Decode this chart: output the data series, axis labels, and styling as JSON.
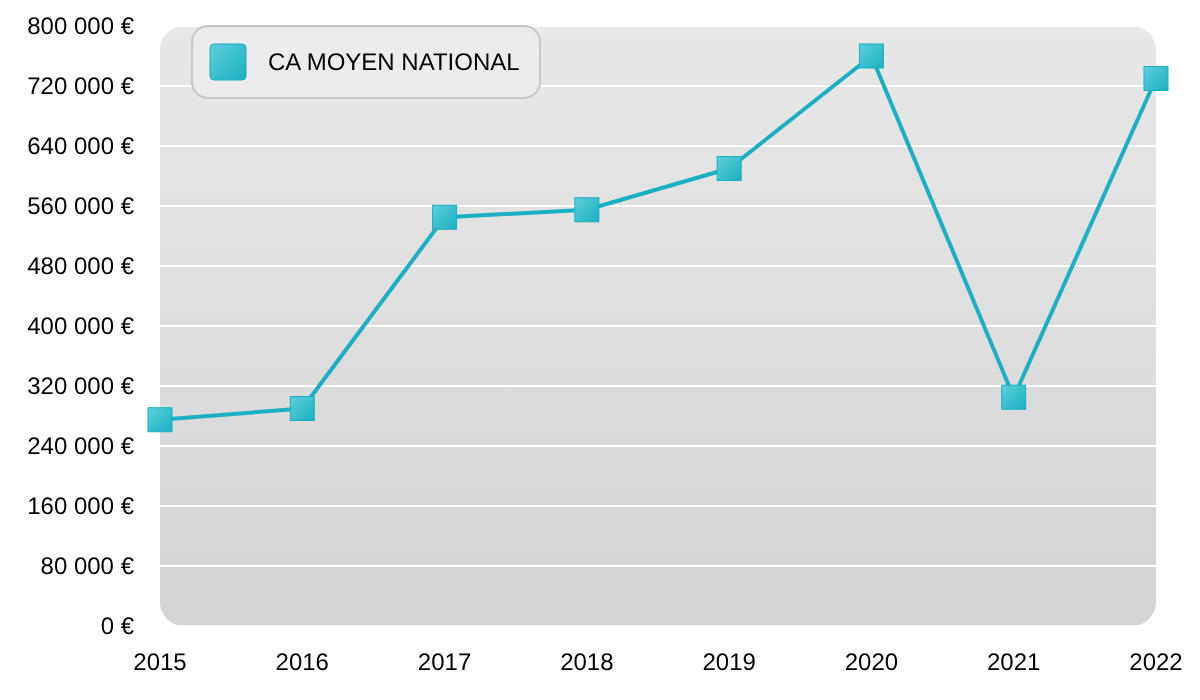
{
  "chart_data": {
    "type": "line",
    "x": [
      2015,
      2016,
      2017,
      2018,
      2019,
      2020,
      2021,
      2022
    ],
    "series": [
      {
        "name": "CA MOYEN NATIONAL",
        "color": "#1ab0c0",
        "values": [
          275000,
          290000,
          545000,
          555000,
          610000,
          760000,
          305000,
          730000
        ]
      }
    ],
    "xlim": [
      2015,
      2022
    ],
    "xticks": [
      2015,
      2016,
      2017,
      2018,
      2019,
      2020,
      2021,
      2022
    ],
    "ylim": [
      0,
      800000
    ],
    "yticks": [
      {
        "value": 0,
        "label": "0 €"
      },
      {
        "value": 80000,
        "label": "80 000 €"
      },
      {
        "value": 160000,
        "label": "160 000 €"
      },
      {
        "value": 240000,
        "label": "240 000 €"
      },
      {
        "value": 320000,
        "label": "320 000 €"
      },
      {
        "value": 400000,
        "label": "400 000 €"
      },
      {
        "value": 480000,
        "label": "480 000 €"
      },
      {
        "value": 560000,
        "label": "560 000 €"
      },
      {
        "value": 640000,
        "label": "640 000 €"
      },
      {
        "value": 720000,
        "label": "720 000 €"
      },
      {
        "value": 800000,
        "label": "800 000 €"
      }
    ],
    "grid": "y",
    "legend": "top left",
    "marker": "square",
    "line_style": "solid"
  }
}
